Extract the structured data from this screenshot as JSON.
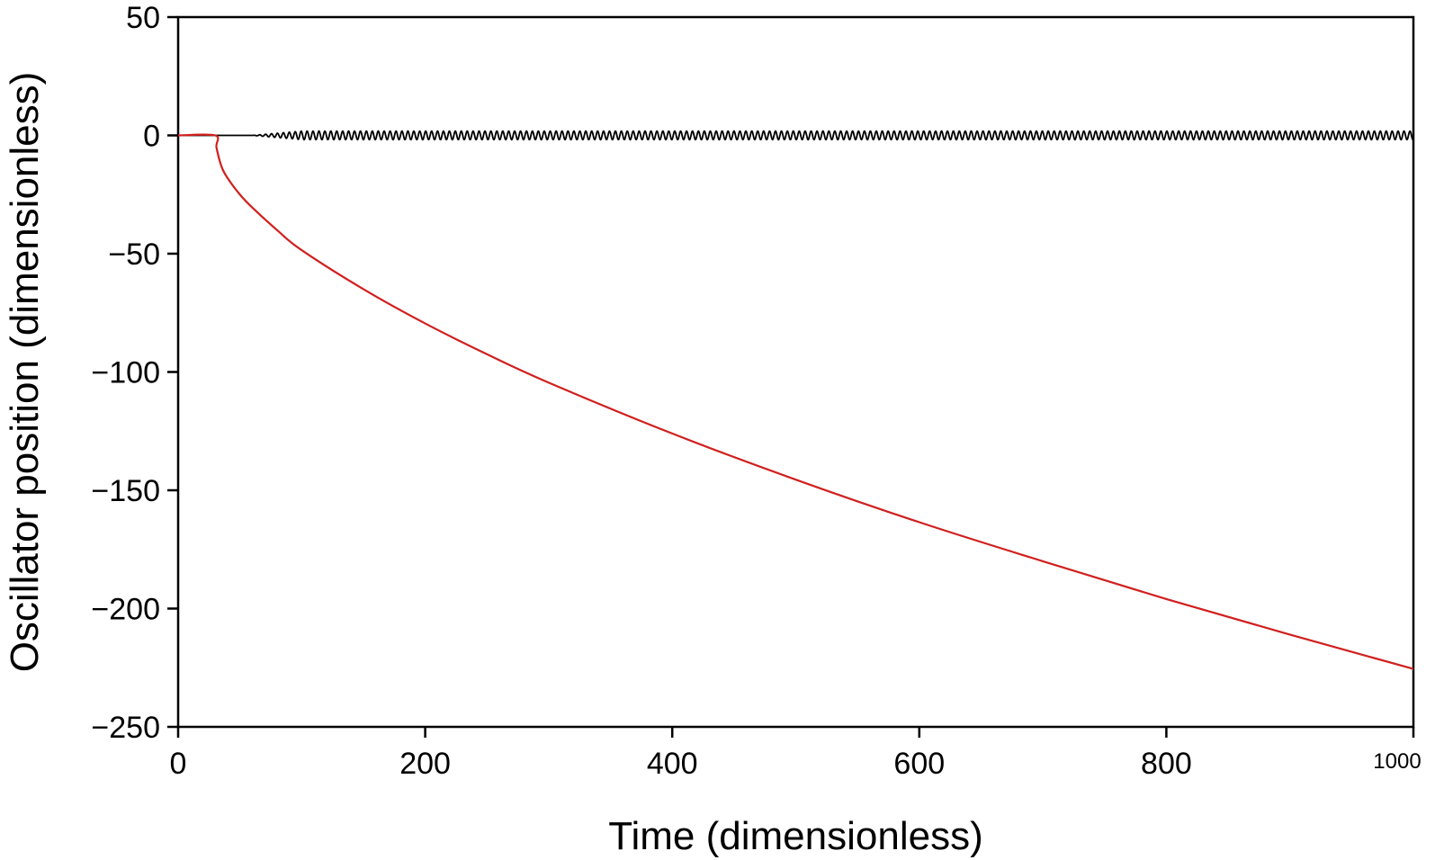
{
  "chart_data": {
    "type": "line",
    "title": "",
    "xlabel": "Time (dimensionless)",
    "ylabel": "Oscillator position (dimensionless)",
    "xlim": [
      0,
      1000
    ],
    "ylim": [
      -250,
      50
    ],
    "x_ticks": [
      0,
      200,
      400,
      600,
      800,
      1000
    ],
    "x_tick_labels": [
      "0",
      "200",
      "400",
      "600",
      "800",
      "1000"
    ],
    "y_ticks": [
      50,
      0,
      -50,
      -100,
      -150,
      -200,
      -250
    ],
    "y_tick_labels": [
      "50",
      "0",
      "−50",
      "−100",
      "−150",
      "−200",
      "−250"
    ],
    "grid": false,
    "legend": "none",
    "series": [
      {
        "color": "#000000",
        "description_points": {
          "x": [
            0,
            60,
            70,
            100,
            200,
            400,
            600,
            800,
            1000
          ],
          "y": [
            0,
            0,
            0.5,
            1.5,
            1.8,
            1.8,
            1.8,
            1.8,
            1.8
          ]
        },
        "oscillation": {
          "start": 60,
          "ramp_end": 100,
          "amplitude": 1.8,
          "period": 4.8
        }
      },
      {
        "color": "#d0201e",
        "x": [
          0,
          30,
          31,
          35,
          40,
          50,
          60,
          80,
          100,
          150,
          200,
          250,
          300,
          400,
          500,
          600,
          700,
          800,
          900,
          1000
        ],
        "y": [
          0,
          0,
          -5,
          -13,
          -18,
          -25,
          -30.5,
          -40,
          -48.5,
          -65,
          -79.5,
          -92.5,
          -104.5,
          -126,
          -145.5,
          -163.5,
          -180,
          -196,
          -211,
          -225.5
        ]
      }
    ]
  }
}
